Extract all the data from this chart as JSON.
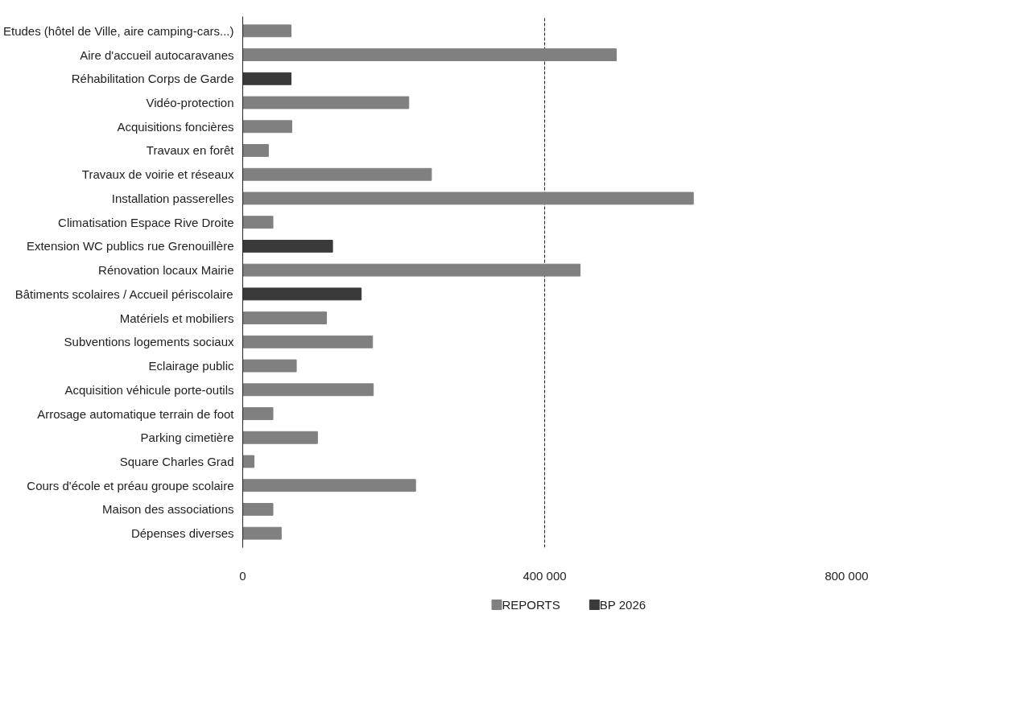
{
  "chart_data": {
    "type": "bar",
    "orientation": "horizontal",
    "stacked": true,
    "categories": [
      "Etudes (hôtel de Ville, aire camping-cars...)",
      "Aire d'accueil autocaravanes",
      "Réhabilitation Corps de Garde",
      "Vidéo-protection",
      "Acquisitions foncières",
      "Travaux en forêt",
      "Travaux de voirie et réseaux",
      "Installation passerelles",
      "Climatisation Espace Rive Droite",
      "Extension WC publics rue Grenouillère",
      "Rénovation locaux Mairie",
      "Bâtiments scolaires / Accueil périscolaire",
      "Matériels et mobiliers",
      "Subventions logements sociaux",
      "Eclairage public",
      "Acquisition véhicule porte-outils",
      "Arrosage automatique terrain de foot",
      "Parking cimetière",
      "Square Charles Grad",
      "Cours d'école et préau groupe scolaire",
      "Maison des associations",
      "Dépenses diverses"
    ],
    "series": [
      {
        "name": "REPORTS",
        "color": "#808080",
        "values": [
          64000,
          495000,
          null,
          220000,
          65000,
          34000,
          250000,
          597000,
          40000,
          null,
          447000,
          null,
          111000,
          172000,
          71000,
          173000,
          40000,
          99000,
          15000,
          229000,
          40000,
          51000
        ]
      },
      {
        "name": "BP 2026",
        "color": "#3a3a3a",
        "values": [
          null,
          null,
          64000,
          null,
          null,
          null,
          null,
          null,
          null,
          119000,
          null,
          157000,
          null,
          null,
          null,
          null,
          null,
          null,
          null,
          null,
          null,
          null
        ]
      }
    ],
    "xlim": [
      0,
      800000
    ],
    "xticks": [
      0,
      {
        "value": 400000,
        "label": "400 000"
      },
      {
        "value": 800000,
        "label": "800 000"
      }
    ],
    "grid": "x",
    "legend": "bottom"
  }
}
